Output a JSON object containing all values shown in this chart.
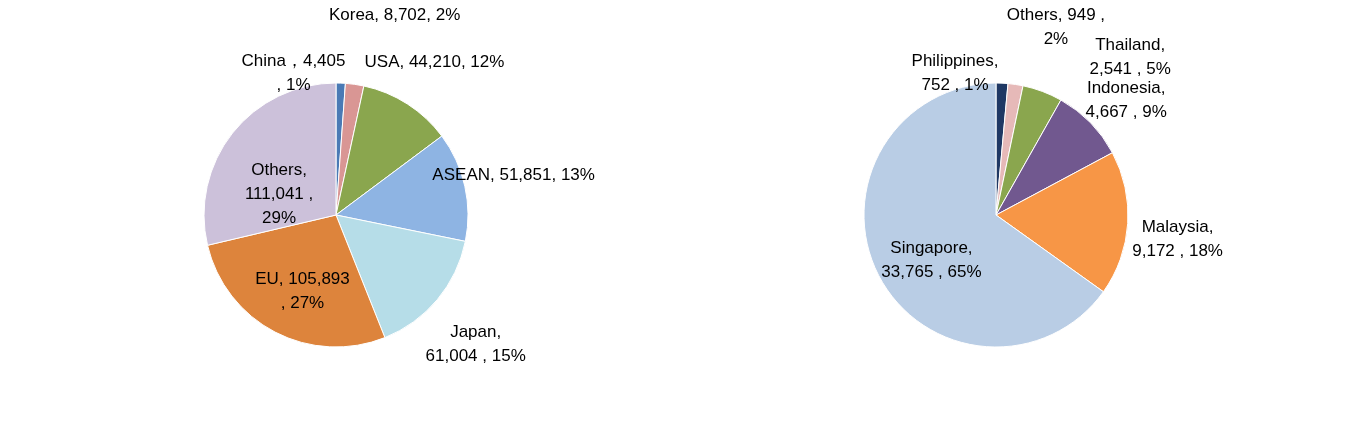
{
  "chart_data": [
    {
      "type": "pie",
      "categories": [
        "China",
        "Korea",
        "USA",
        "ASEAN",
        "Japan",
        "EU",
        "Others"
      ],
      "values": [
        4405,
        8702,
        44210,
        51851,
        61004,
        105893,
        111041
      ],
      "colors": [
        "#4a7ab5",
        "#d99694",
        "#8aa64e",
        "#8eb4e3",
        "#b6dde8",
        "#dd843c",
        "#ccc1da"
      ],
      "value_labels": [
        "，4,405\n, 1%",
        ", 8,702, 2%",
        ", 44,210, 12%",
        ", 51,851, 13%",
        ",\n61,004 , 15%",
        ",  105,893\n, 27%",
        ",\n111,041 ,\n29%"
      ]
    },
    {
      "type": "pie",
      "categories": [
        "Philippines",
        "Others",
        "Thailand",
        "Indonesia",
        "Malaysia",
        "Singapore"
      ],
      "values": [
        752,
        949,
        2541,
        4667,
        9172,
        33765
      ],
      "colors": [
        "#1f3864",
        "#e6b9b8",
        "#8aa64e",
        "#71588f",
        "#f79646",
        "#b9cde5"
      ],
      "value_labels": [
        ",\n752 , 1%",
        ",  949 ,\n2%",
        ",\n2,541 , 5%",
        ",\n4,667 , 9%",
        ",\n9,172 , 18%",
        ",\n33,765 , 65%"
      ]
    }
  ]
}
